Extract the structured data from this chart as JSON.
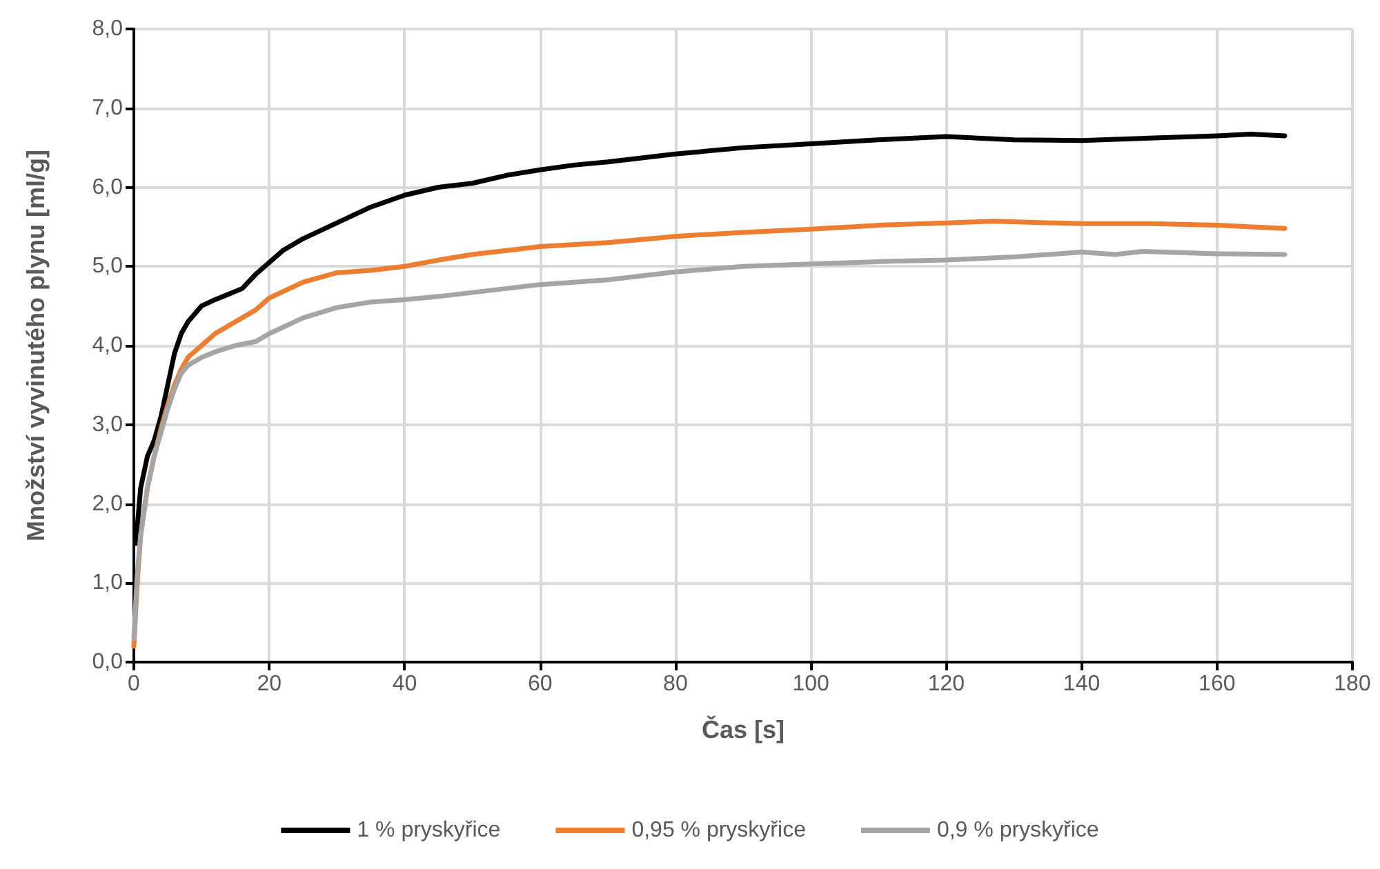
{
  "chart_data": {
    "type": "line",
    "xlabel": "Čas [s]",
    "ylabel": "Množství vyvinutého plynu [ml/g]",
    "xlim": [
      0,
      180
    ],
    "xticks": [
      0,
      20,
      40,
      60,
      80,
      100,
      120,
      140,
      160,
      180
    ],
    "ylim": [
      0,
      8
    ],
    "yticks": [
      {
        "value": 0,
        "label": "0,0"
      },
      {
        "value": 1,
        "label": "1,0"
      },
      {
        "value": 2,
        "label": "2,0"
      },
      {
        "value": 3,
        "label": "3,0"
      },
      {
        "value": 4,
        "label": "4,0"
      },
      {
        "value": 5,
        "label": "5,0"
      },
      {
        "value": 6,
        "label": "6,0"
      },
      {
        "value": 7,
        "label": "7,0"
      },
      {
        "value": 8,
        "label": "8,0"
      }
    ],
    "grid": true,
    "legend": "bottom",
    "marker": "none",
    "line_style": "solid",
    "series": [
      {
        "name": "1 % pryskyřice",
        "color": "#000000",
        "x": [
          0.3,
          1,
          2,
          3,
          4,
          5,
          6,
          7,
          8,
          10,
          12,
          14,
          16,
          18,
          20,
          22,
          25,
          30,
          35,
          40,
          45,
          50,
          55,
          60,
          65,
          70,
          80,
          90,
          100,
          110,
          120,
          130,
          140,
          150,
          160,
          165,
          170
        ],
        "values": [
          1.5,
          2.2,
          2.6,
          2.8,
          3.1,
          3.5,
          3.9,
          4.15,
          4.3,
          4.5,
          4.58,
          4.65,
          4.72,
          4.9,
          5.05,
          5.2,
          5.35,
          5.55,
          5.75,
          5.9,
          6.0,
          6.05,
          6.15,
          6.22,
          6.28,
          6.32,
          6.42,
          6.5,
          6.55,
          6.6,
          6.64,
          6.6,
          6.59,
          6.62,
          6.65,
          6.67,
          6.65
        ]
      },
      {
        "name": "0,95 % pryskyřice",
        "color": "#ed7d31",
        "x": [
          0,
          0.5,
          1,
          2,
          3,
          4,
          5,
          6,
          7,
          8,
          10,
          12,
          15,
          18,
          20,
          25,
          30,
          35,
          40,
          45,
          50,
          55,
          60,
          70,
          80,
          90,
          100,
          110,
          120,
          127,
          140,
          150,
          160,
          170
        ],
        "values": [
          0.2,
          1.0,
          1.6,
          2.2,
          2.6,
          2.95,
          3.25,
          3.5,
          3.7,
          3.85,
          4.0,
          4.15,
          4.3,
          4.45,
          4.6,
          4.8,
          4.92,
          4.95,
          5.0,
          5.08,
          5.15,
          5.2,
          5.25,
          5.3,
          5.38,
          5.43,
          5.47,
          5.52,
          5.55,
          5.57,
          5.54,
          5.54,
          5.52,
          5.48
        ]
      },
      {
        "name": "0,9 % pryskyřice",
        "color": "#a5a5a5",
        "x": [
          0,
          0.5,
          1,
          2,
          3,
          4,
          5,
          6,
          7,
          8,
          10,
          12,
          15,
          18,
          20,
          25,
          30,
          35,
          40,
          45,
          50,
          55,
          60,
          70,
          80,
          90,
          100,
          110,
          120,
          130,
          140,
          145,
          149,
          160,
          170
        ],
        "values": [
          0.3,
          1.1,
          1.6,
          2.2,
          2.6,
          2.9,
          3.2,
          3.45,
          3.65,
          3.75,
          3.85,
          3.92,
          4.0,
          4.05,
          4.15,
          4.35,
          4.48,
          4.55,
          4.58,
          4.62,
          4.67,
          4.72,
          4.77,
          4.83,
          4.93,
          5.0,
          5.03,
          5.06,
          5.08,
          5.12,
          5.18,
          5.15,
          5.19,
          5.16,
          5.15
        ]
      }
    ]
  }
}
